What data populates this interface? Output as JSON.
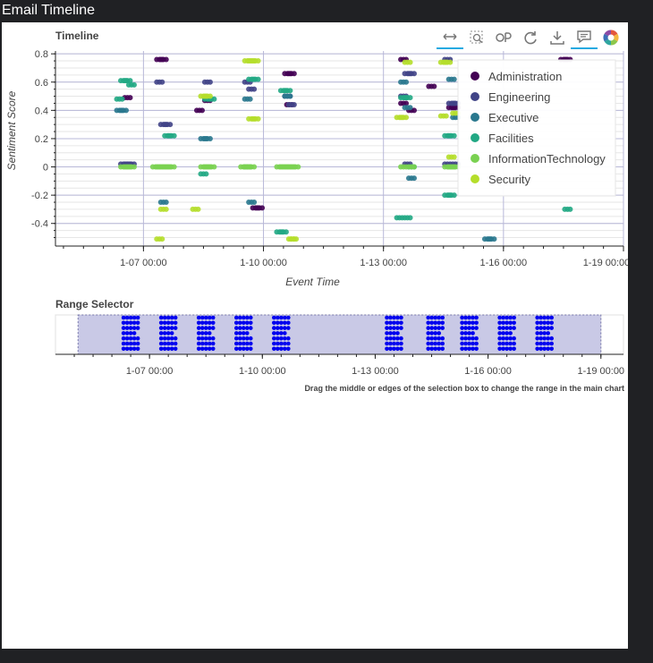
{
  "window": {
    "title": "Email Timeline"
  },
  "toolbar": {
    "tools": [
      {
        "name": "xpan-tool",
        "icon": "horizontal-pan-icon",
        "active": true
      },
      {
        "name": "box-zoom-tool",
        "icon": "box-zoom-icon",
        "active": false
      },
      {
        "name": "reset-tool",
        "icon": "reset-icon",
        "active": false
      },
      {
        "name": "refresh-tool",
        "icon": "refresh-icon",
        "active": false
      },
      {
        "name": "save-tool",
        "icon": "download-icon",
        "active": false
      },
      {
        "name": "hover-tool",
        "icon": "tooltip-icon",
        "active": true
      },
      {
        "name": "bokeh-logo",
        "icon": "bokeh-logo-icon",
        "active": false
      }
    ]
  },
  "chart_data": [
    {
      "type": "scatter",
      "title": "Timeline",
      "xlabel": "Event Time",
      "ylabel": "Sentiment Score",
      "x_ticks": [
        "1-07 00:00",
        "1-10 00:00",
        "1-13 00:00",
        "1-16 00:00",
        "1-19 00:00"
      ],
      "x_tick_days": [
        7,
        10,
        13,
        16,
        19
      ],
      "xlim_days": [
        4.8,
        19.0
      ],
      "y_ticks": [
        -0.4,
        -0.2,
        0,
        0.2,
        0.4,
        0.6,
        0.8
      ],
      "ylim": [
        -0.56,
        0.82
      ],
      "legend_position": "top-right",
      "series": [
        {
          "name": "Administration",
          "color": "#440154",
          "points": [
            [
              6.6,
              0.49
            ],
            [
              7.4,
              0.76
            ],
            [
              7.5,
              0.76
            ],
            [
              8.4,
              0.4
            ],
            [
              8.6,
              0.47
            ],
            [
              9.8,
              -0.29
            ],
            [
              9.9,
              -0.29
            ],
            [
              10.6,
              0.66
            ],
            [
              10.7,
              0.66
            ],
            [
              10.65,
              0.44
            ],
            [
              13.5,
              0.76
            ],
            [
              13.7,
              0.4
            ],
            [
              13.5,
              0.45
            ],
            [
              14.2,
              0.57
            ],
            [
              14.7,
              0.42
            ],
            [
              14.8,
              0.42
            ],
            [
              17.5,
              0.76
            ],
            [
              17.6,
              0.76
            ]
          ]
        },
        {
          "name": "Engineering",
          "color": "#414487",
          "points": [
            [
              6.5,
              0.02
            ],
            [
              6.6,
              0.02
            ],
            [
              6.7,
              0.02
            ],
            [
              7.4,
              0.6
            ],
            [
              7.5,
              0.3
            ],
            [
              7.6,
              0.3
            ],
            [
              8.6,
              0.6
            ],
            [
              9.6,
              0.6
            ],
            [
              9.7,
              0.55
            ],
            [
              10.6,
              0.5
            ],
            [
              10.7,
              0.44
            ],
            [
              13.6,
              0.66
            ],
            [
              13.7,
              0.66
            ],
            [
              13.5,
              0.5
            ],
            [
              13.6,
              0.02
            ],
            [
              14.6,
              0.76
            ],
            [
              14.7,
              0.45
            ],
            [
              14.8,
              0.45
            ],
            [
              14.6,
              0.02
            ],
            [
              14.8,
              0.02
            ]
          ]
        },
        {
          "name": "Executive",
          "color": "#2a788e",
          "points": [
            [
              6.4,
              0.4
            ],
            [
              6.5,
              0.4
            ],
            [
              7.5,
              -0.25
            ],
            [
              8.5,
              0.2
            ],
            [
              8.6,
              0.2
            ],
            [
              9.6,
              0.48
            ],
            [
              9.7,
              -0.25
            ],
            [
              10.6,
              0.5
            ],
            [
              13.5,
              0.6
            ],
            [
              13.6,
              0.42
            ],
            [
              13.7,
              -0.08
            ],
            [
              14.7,
              0.62
            ],
            [
              14.8,
              0.35
            ],
            [
              15.6,
              -0.51
            ],
            [
              15.7,
              -0.51
            ]
          ]
        },
        {
          "name": "Facilities",
          "color": "#22a884",
          "points": [
            [
              6.5,
              0.61
            ],
            [
              6.6,
              0.61
            ],
            [
              6.7,
              0.58
            ],
            [
              6.4,
              0.48
            ],
            [
              7.6,
              0.22
            ],
            [
              7.7,
              0.22
            ],
            [
              8.6,
              0.48
            ],
            [
              8.7,
              0.48
            ],
            [
              8.5,
              -0.05
            ],
            [
              9.6,
              0.0
            ],
            [
              9.7,
              0.62
            ],
            [
              9.8,
              0.62
            ],
            [
              10.4,
              -0.46
            ],
            [
              10.5,
              -0.46
            ],
            [
              10.5,
              0.54
            ],
            [
              10.6,
              0.54
            ],
            [
              13.5,
              0.49
            ],
            [
              13.6,
              0.49
            ],
            [
              13.4,
              -0.36
            ],
            [
              13.6,
              -0.36
            ],
            [
              13.7,
              0.0
            ],
            [
              14.6,
              0.22
            ],
            [
              14.7,
              0.22
            ],
            [
              14.6,
              -0.2
            ],
            [
              14.7,
              -0.2
            ],
            [
              17.6,
              -0.3
            ]
          ]
        },
        {
          "name": "InformationTechnology",
          "color": "#7ad151",
          "points": [
            [
              6.5,
              0.0
            ],
            [
              6.6,
              0.0
            ],
            [
              6.7,
              0.0
            ],
            [
              7.3,
              0.0
            ],
            [
              7.4,
              0.0
            ],
            [
              7.5,
              0.0
            ],
            [
              7.6,
              0.0
            ],
            [
              7.7,
              0.0
            ],
            [
              8.5,
              0.0
            ],
            [
              8.6,
              0.0
            ],
            [
              8.7,
              0.0
            ],
            [
              9.5,
              0.0
            ],
            [
              9.6,
              0.0
            ],
            [
              9.7,
              0.0
            ],
            [
              10.4,
              0.0
            ],
            [
              10.5,
              0.0
            ],
            [
              10.6,
              0.0
            ],
            [
              10.7,
              0.0
            ],
            [
              10.8,
              0.0
            ],
            [
              13.5,
              0.0
            ],
            [
              13.7,
              0.0
            ],
            [
              14.6,
              0.0
            ],
            [
              14.7,
              0.0
            ],
            [
              14.8,
              0.0
            ]
          ]
        },
        {
          "name": "Security",
          "color": "#b5de2b",
          "points": [
            [
              7.4,
              -0.51
            ],
            [
              7.5,
              -0.3
            ],
            [
              8.3,
              -0.3
            ],
            [
              8.5,
              0.5
            ],
            [
              8.6,
              0.5
            ],
            [
              9.6,
              0.75
            ],
            [
              9.7,
              0.75
            ],
            [
              9.8,
              0.75
            ],
            [
              9.7,
              0.34
            ],
            [
              9.8,
              0.34
            ],
            [
              10.7,
              -0.51
            ],
            [
              10.75,
              -0.51
            ],
            [
              13.4,
              0.35
            ],
            [
              13.5,
              0.35
            ],
            [
              13.6,
              0.74
            ],
            [
              14.5,
              0.74
            ],
            [
              14.6,
              0.74
            ],
            [
              14.5,
              0.36
            ],
            [
              14.7,
              0.07
            ],
            [
              14.8,
              0.38
            ]
          ]
        }
      ]
    },
    {
      "type": "scatter",
      "title": "Range Selector",
      "x_ticks": [
        "1-07 00:00",
        "1-10 00:00",
        "1-13 00:00",
        "1-16 00:00",
        "1-19 00:00"
      ],
      "x_tick_days": [
        7,
        10,
        13,
        16,
        19
      ],
      "xlim_days": [
        4.5,
        19.6
      ],
      "selection_days": [
        5.1,
        19.0
      ],
      "point_color": "#0000ee",
      "columns_days": [
        6.5,
        7.5,
        8.5,
        9.5,
        10.5,
        13.5,
        14.6,
        15.5,
        16.5,
        17.5
      ],
      "hint": "Drag the middle or edges of the selection box to change the range in the main chart"
    }
  ]
}
